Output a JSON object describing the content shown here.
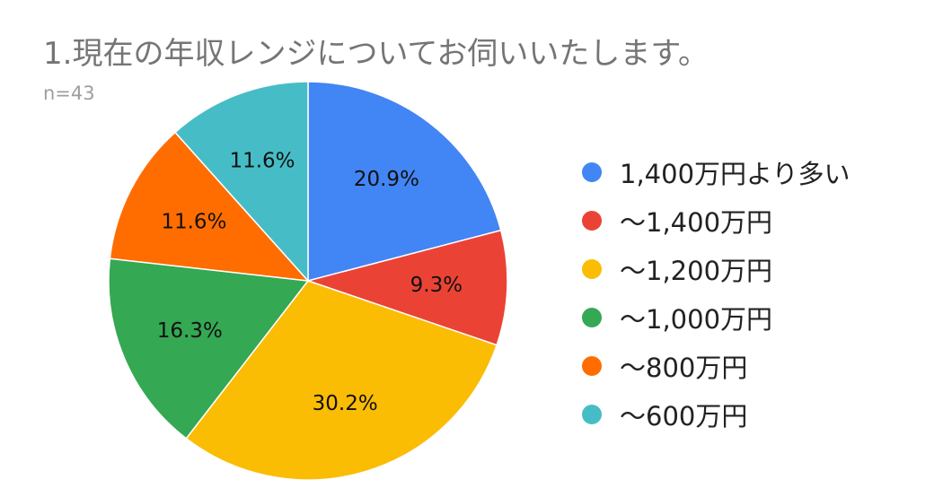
{
  "chart_data": {
    "type": "pie",
    "title": "1.現在の年収レンジについてお伺いいたします。",
    "subtitle": "n=43",
    "categories": [
      "1,400万円より多い",
      "〜1,400万円",
      "〜1,200万円",
      "〜1,000万円",
      "〜800万円",
      "〜600万円"
    ],
    "values": [
      20.9,
      9.3,
      30.2,
      16.3,
      11.6,
      11.6
    ],
    "labels": [
      "20.9%",
      "9.3%",
      "30.2%",
      "16.3%",
      "11.6%",
      "11.6%"
    ],
    "colors": [
      "#4285F4",
      "#EA4335",
      "#FBBC04",
      "#34A853",
      "#FF6D01",
      "#46BDC6"
    ],
    "legend_position": "right"
  }
}
